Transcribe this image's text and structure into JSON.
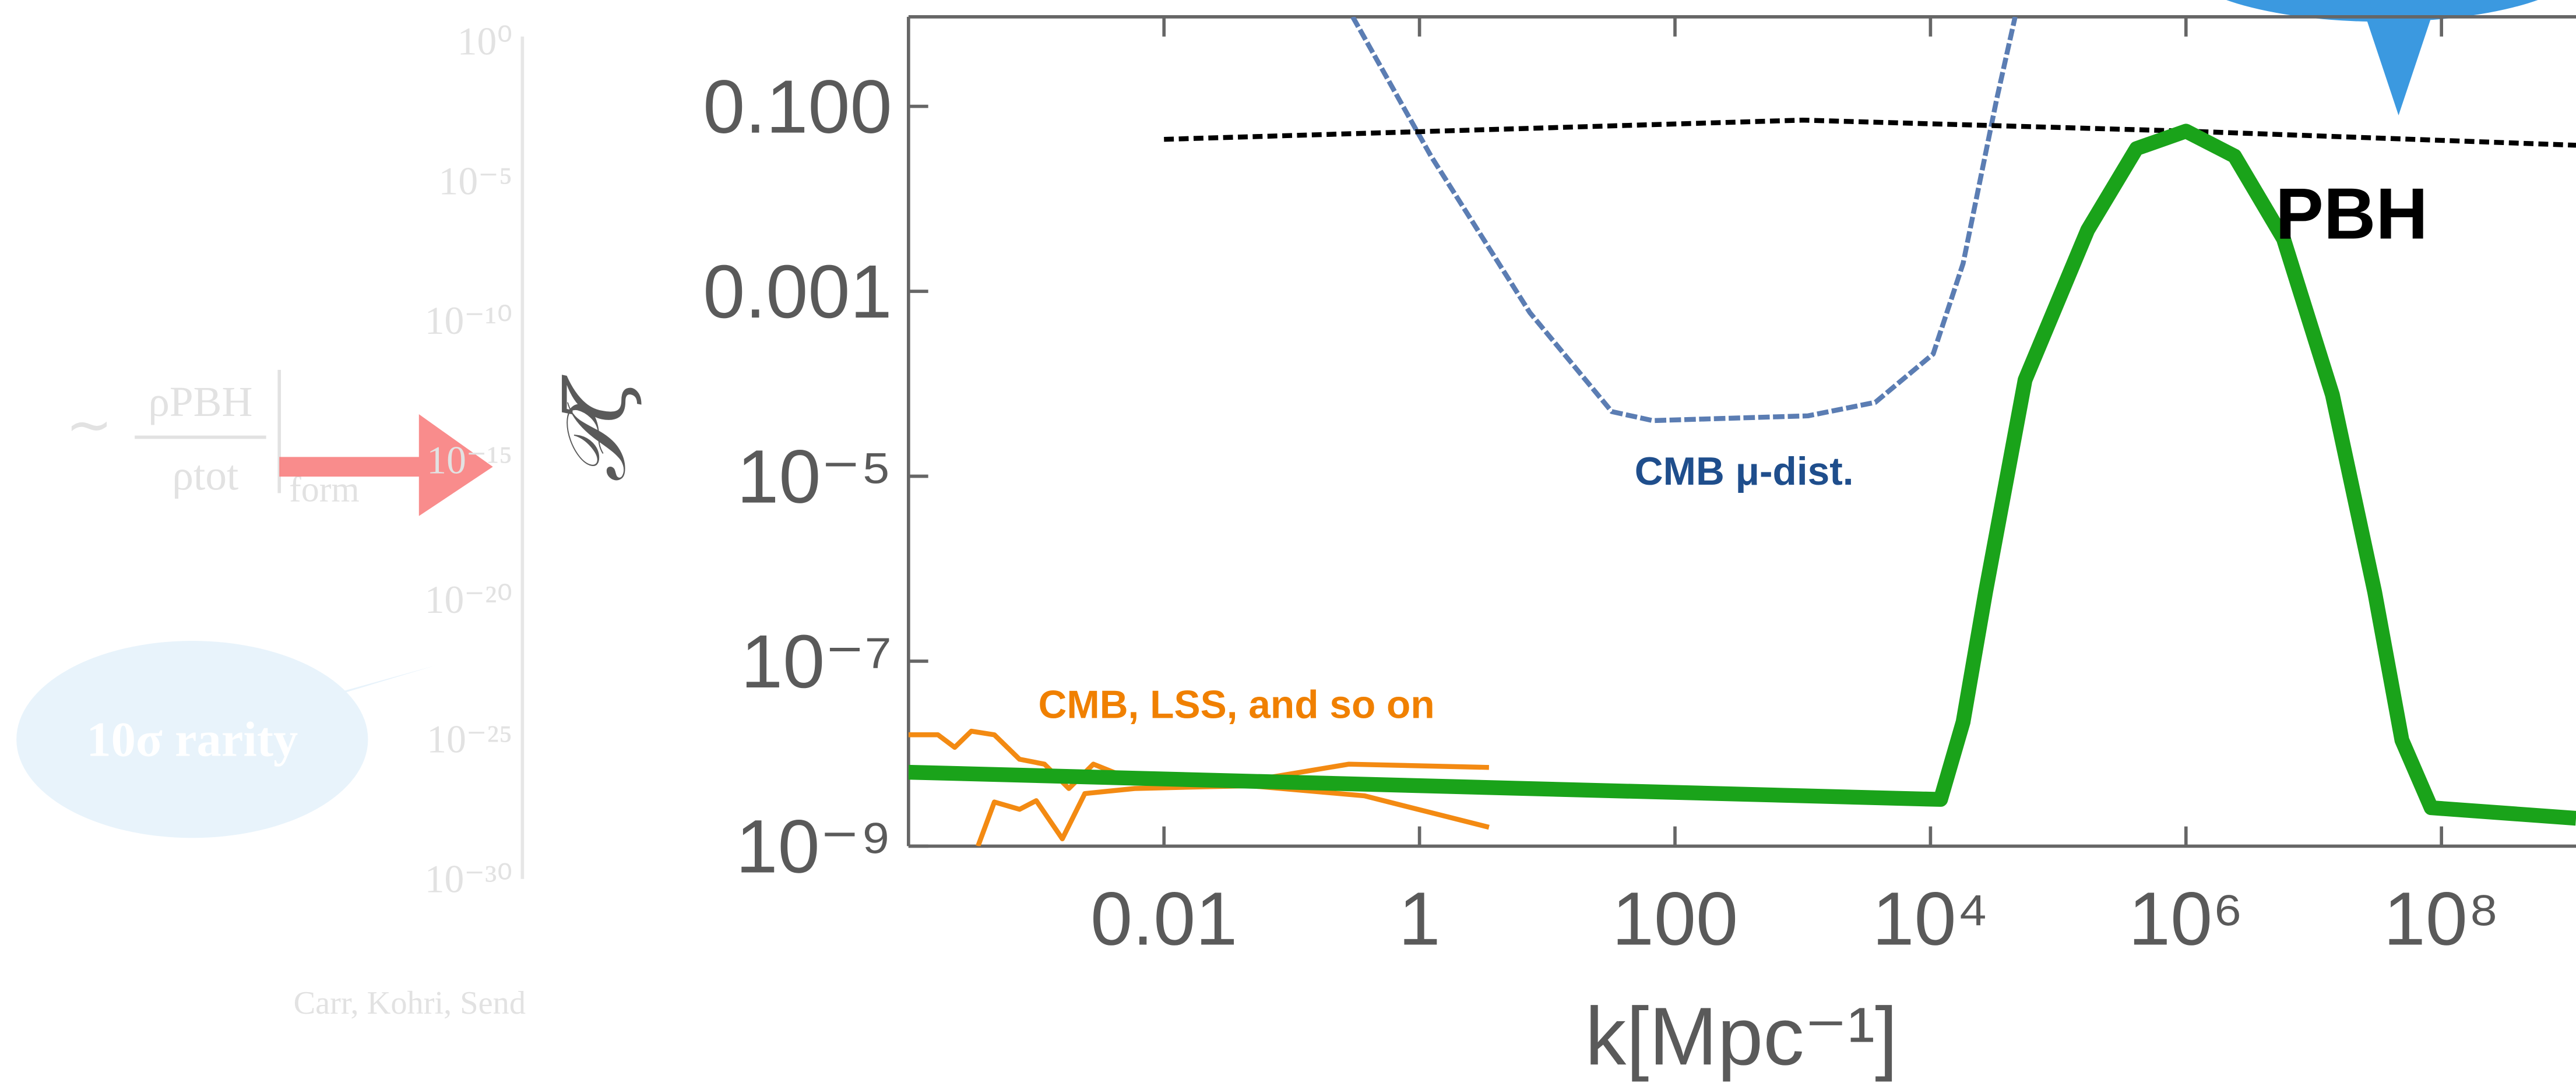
{
  "chart_data": {
    "type": "line",
    "xlabel": "k[Mpc⁻¹]",
    "ylabel": "𝒫ζ",
    "xscale": "log",
    "yscale": "log",
    "xlim": [
      0.0001,
      1130000000
    ],
    "ylim": [
      1e-09,
      0.93
    ],
    "xticks": [
      0.01,
      1,
      100,
      {
        "value": 10000,
        "label": "10⁴"
      },
      {
        "value": 1000000,
        "label": "10⁶"
      },
      {
        "value": 100000000,
        "label": "10⁸"
      }
    ],
    "yticks": [
      {
        "value": 1e-09,
        "label": "10⁻⁹"
      },
      {
        "value": 1e-07,
        "label": "10⁻⁷"
      },
      {
        "value": 1e-05,
        "label": "10⁻⁵"
      },
      0.001,
      {
        "value": 0.1,
        "label": "0.100"
      }
    ],
    "series": [
      {
        "name": "CMB, LSS, and so on",
        "color": "#f38a12",
        "x": [
          0.0001,
          0.00017,
          0.00023,
          0.00031,
          0.00047,
          0.00074,
          0.00116,
          0.0018,
          0.0028,
          0.0059,
          0.047,
          0.28,
          3.5
        ],
        "values": [
          1.6e-08,
          1.6e-08,
          1.17e-08,
          1.75e-08,
          1.6e-08,
          8.7e-09,
          7.7e-09,
          4.2e-09,
          7.7e-09,
          5.1e-09,
          5.1e-09,
          7.7e-09,
          7.1e-09
        ]
      },
      {
        "color": "#f38a12",
        "x": [
          0.00035,
          0.00047,
          0.00074,
          0.001,
          0.0016,
          0.0024,
          0.0059,
          0.047,
          0.37,
          3.5
        ],
        "values": [
          1e-09,
          3e-09,
          2.5e-09,
          3.1e-09,
          1.2e-09,
          3.7e-09,
          4.2e-09,
          4.5e-09,
          3.5e-09,
          1.6e-09
        ]
      },
      {
        "name": "CMB μ-dist.",
        "color": "#5b7db3",
        "x": [
          0.3,
          1.23,
          7.3,
          32,
          67,
          1100,
          3700,
          10500,
          18000,
          33000,
          46000
        ],
        "values": [
          0.93,
          0.029,
          0.00059,
          5e-05,
          4e-05,
          4.5e-05,
          6.3e-05,
          0.00021,
          0.002,
          0.12,
          0.93
        ]
      },
      {
        "color": "#000000",
        "x": [
          0.01,
          1000,
          1000000,
          1130000000
        ],
        "values": [
          0.044,
          0.071,
          0.054,
          0.038
        ]
      },
      {
        "name": "PBH",
        "color": "#1aa31a",
        "x": [
          0.0001,
          12000,
          18000,
          27000,
          55000,
          170000,
          410000,
          1000000,
          2400000,
          5800000,
          14000000,
          30000000,
          49000000,
          83000000,
          1130000000
        ],
        "values": [
          6.3e-09,
          3.2e-09,
          2.2e-08,
          5.6e-07,
          0.00011,
          0.0046,
          0.035,
          0.054,
          0.029,
          0.0037,
          7.6e-05,
          5.6e-07,
          1.4e-08,
          2.6e-09,
          2e-09
        ]
      }
    ]
  },
  "background_panel": {
    "yticks": [
      "10⁰",
      "10⁻⁵",
      "10⁻¹⁰",
      "10⁻¹⁵",
      "10⁻²⁰",
      "10⁻²⁵",
      "10⁻³⁰"
    ],
    "formula": {
      "prefix": "∼",
      "numerator": "ρPBH",
      "denominator": "ρtot",
      "subscript": "form"
    },
    "bubble": "10σ rarity",
    "citation": "Carr, Kohri, Send"
  }
}
